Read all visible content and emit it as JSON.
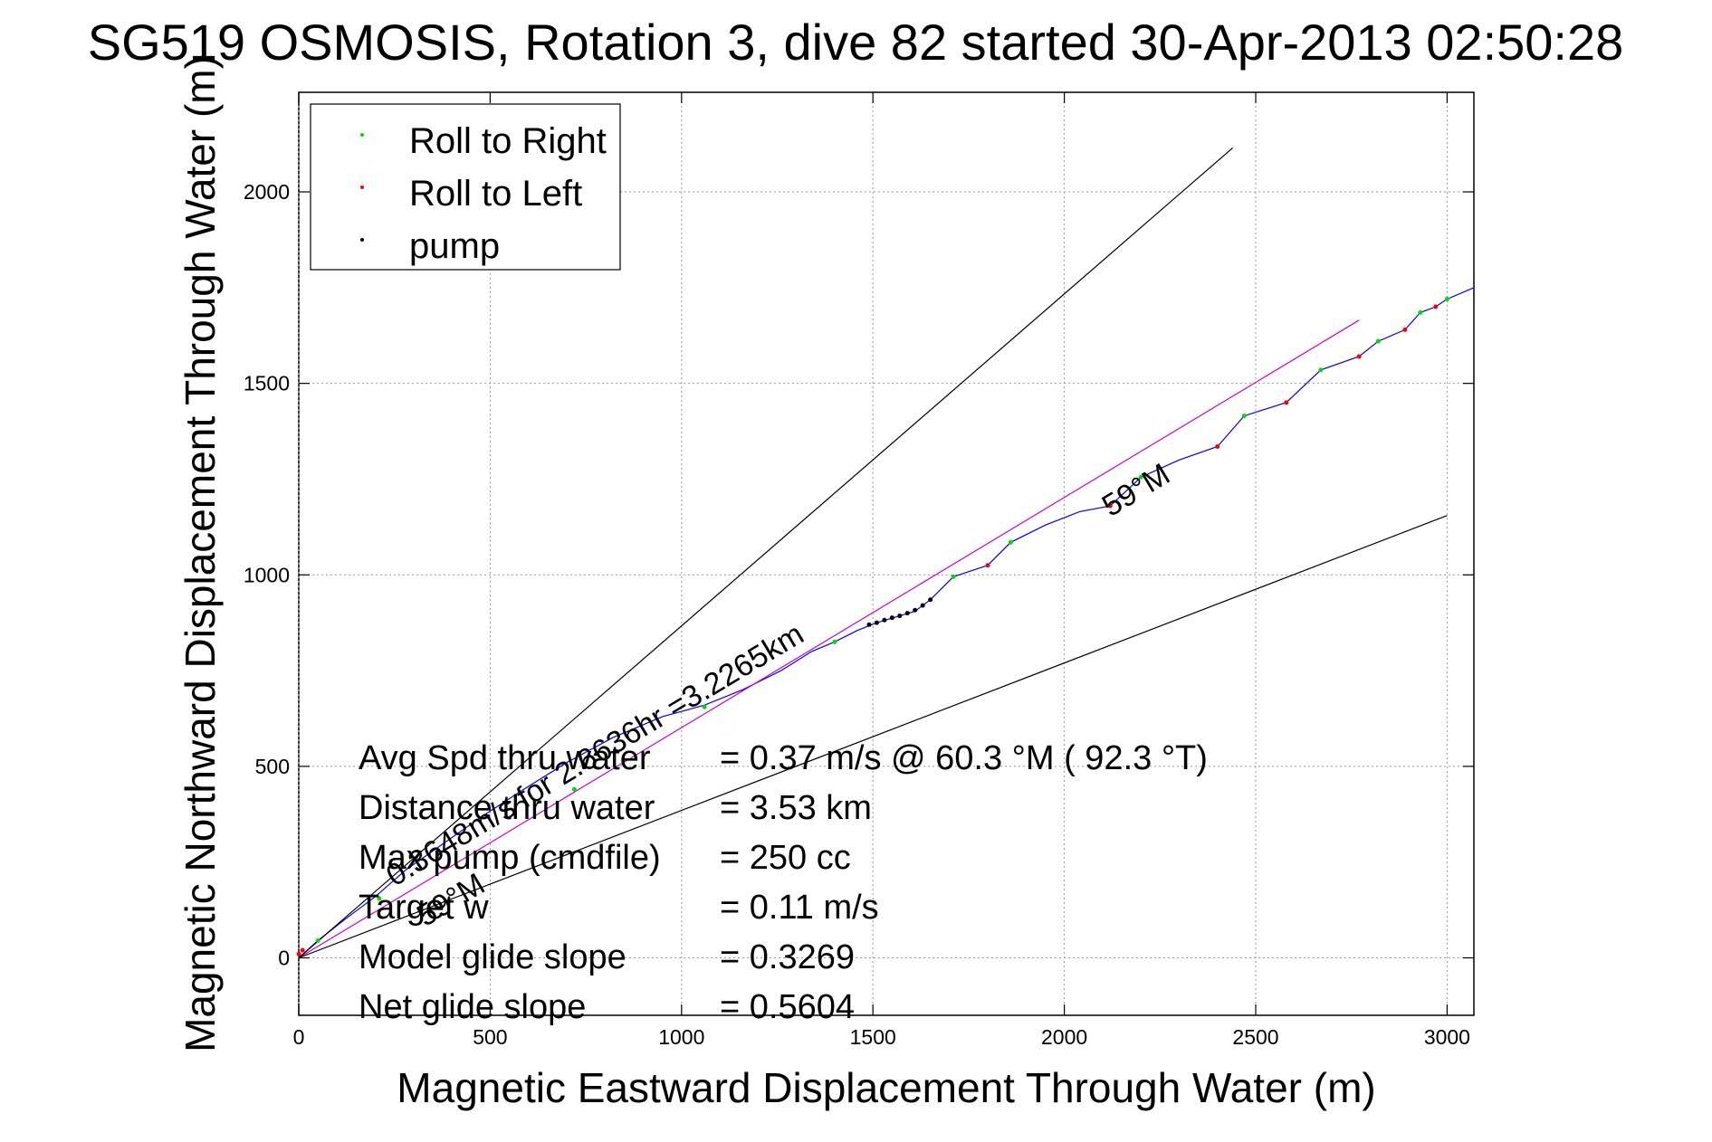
{
  "chart_data": {
    "type": "line",
    "title": "SG519 OSMOSIS, Rotation 3, dive 82 started 30-Apr-2013 02:50:28",
    "xlabel": "Magnetic Eastward Displacement Through Water (m)",
    "ylabel": "Magnetic Northward Displacement Through Water (m)",
    "xlim": [
      0,
      3070
    ],
    "ylim": [
      -150,
      2260
    ],
    "xticks": [
      0,
      500,
      1000,
      1500,
      2000,
      2500,
      3000
    ],
    "yticks": [
      0,
      500,
      1000,
      1500,
      2000
    ],
    "xtick_labels": [
      "0",
      "500",
      "1000",
      "1500",
      "2000",
      "2500",
      "3000"
    ],
    "ytick_labels": [
      "0",
      "500",
      "1000",
      "1500",
      "2000"
    ],
    "grid": true,
    "legend_position": "top-left",
    "legend": [
      {
        "label": "Roll to Right",
        "color": "#00dd00"
      },
      {
        "label": "Roll to Left",
        "color": "#ff0000"
      },
      {
        "label": "pump",
        "color": "#000000"
      }
    ],
    "series": [
      {
        "name": "",
        "color": "#0000ff",
        "x": [
          0,
          50,
          120,
          200,
          280,
          380,
          480,
          580,
          700,
          820,
          950,
          1060,
          1160,
          1260,
          1340,
          1400,
          1460,
          1510,
          1560,
          1610,
          1650,
          1710,
          1800,
          1860,
          1950,
          2040,
          2120,
          2200,
          2300,
          2400,
          2470,
          2580,
          2670,
          2770,
          2820,
          2890,
          2930,
          2970,
          3000,
          3070
        ],
        "y": [
          0,
          45,
          100,
          160,
          230,
          300,
          370,
          435,
          510,
          575,
          630,
          660,
          700,
          750,
          800,
          825,
          855,
          875,
          890,
          905,
          935,
          995,
          1025,
          1085,
          1130,
          1165,
          1180,
          1255,
          1300,
          1335,
          1415,
          1450,
          1535,
          1570,
          1610,
          1640,
          1685,
          1700,
          1720,
          1750
        ]
      },
      {
        "name": "",
        "color": "#cc00cc",
        "x": [
          0,
          2770
        ],
        "y": [
          0,
          1665
        ]
      },
      {
        "name": "",
        "color": "#000000",
        "x": [
          0,
          2440
        ],
        "y": [
          0,
          2115
        ]
      },
      {
        "name": "",
        "color": "#000000",
        "x": [
          0,
          3000
        ],
        "y": [
          0,
          1155
        ]
      }
    ],
    "markers": {
      "roll_right": {
        "color": "#00dd00",
        "x": [
          50,
          210,
          720,
          1060,
          1400,
          1710,
          1860,
          2200,
          2470,
          2670,
          2820,
          2930,
          3000
        ],
        "y": [
          45,
          155,
          440,
          655,
          825,
          995,
          1085,
          1255,
          1415,
          1535,
          1610,
          1685,
          1720
        ]
      },
      "roll_left": {
        "color": "#ff0000",
        "x": [
          0,
          10,
          1800,
          2120,
          2400,
          2580,
          2770,
          2890,
          2970
        ],
        "y": [
          10,
          20,
          1025,
          1180,
          1335,
          1450,
          1570,
          1640,
          1700
        ]
      },
      "pump": {
        "color": "#000000",
        "x": [
          1490,
          1510,
          1530,
          1550,
          1570,
          1590,
          1610,
          1630,
          1650
        ],
        "y": [
          870,
          875,
          882,
          888,
          893,
          900,
          908,
          920,
          935
        ]
      }
    },
    "annotations": [
      {
        "text": "0.3648m/s for 2.6636hr =3.2265km",
        "x": 250,
        "y": 185,
        "angle_deg": 31
      },
      {
        "text": "59°M",
        "x": 2120,
        "y": 1150,
        "angle_deg": 31
      },
      {
        "text": "59°M",
        "x": 330,
        "y": 80,
        "angle_deg": 31
      }
    ],
    "stats": [
      {
        "label": "Avg Spd thru water",
        "value": "=  0.37 m/s @  60.3 °M ( 92.3 °T)"
      },
      {
        "label": "Distance thru water",
        "value": "=  3.53 km"
      },
      {
        "label": "Max pump (cmdfile)",
        "value": "= 250 cc"
      },
      {
        "label": "Target w",
        "value": "= 0.11 m/s"
      },
      {
        "label": "Model glide slope",
        "value": "= 0.3269"
      },
      {
        "label": "Net glide slope",
        "value": "= 0.5604"
      }
    ]
  }
}
